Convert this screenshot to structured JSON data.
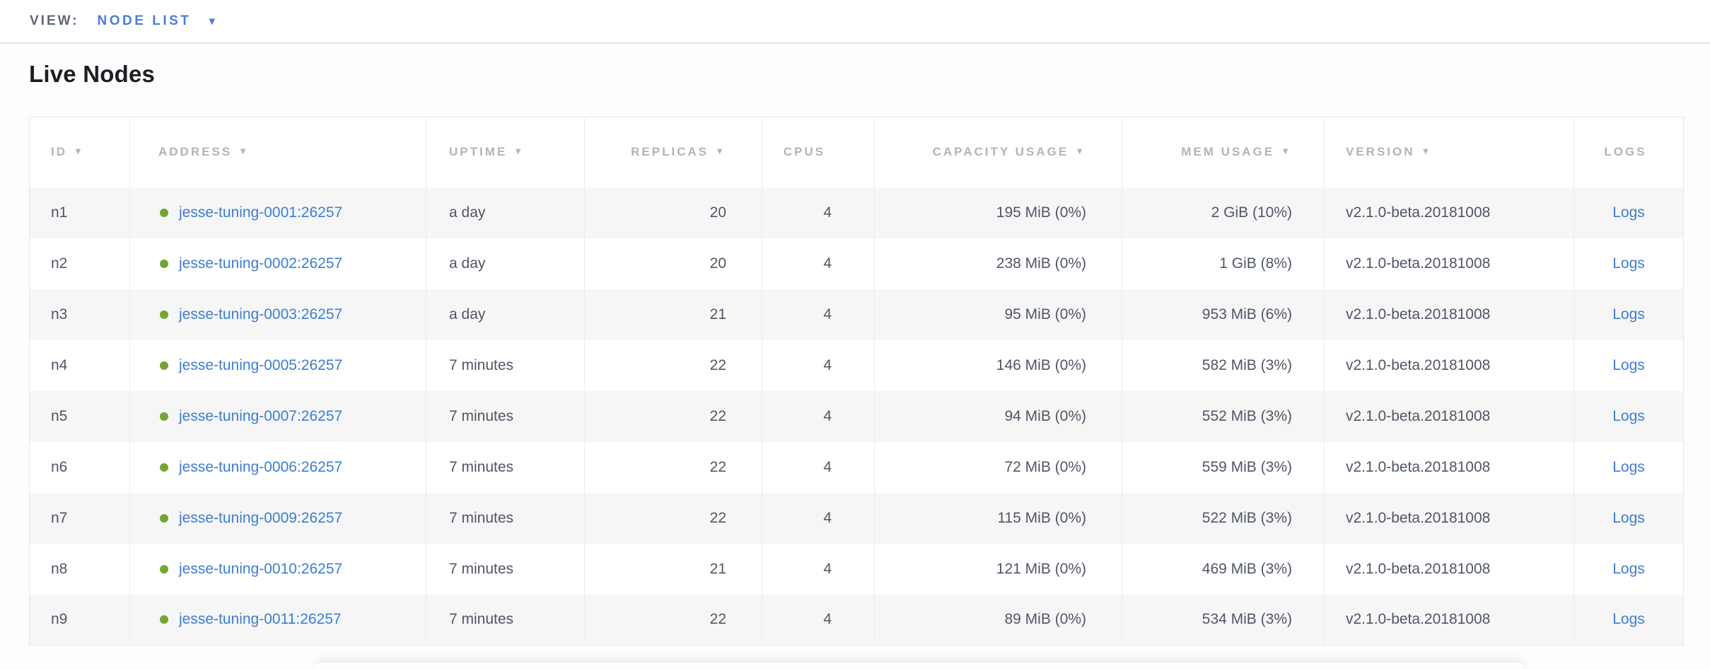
{
  "view_bar": {
    "label": "VIEW:",
    "selected": "NODE LIST",
    "caret_icon": "▼"
  },
  "page": {
    "title": "Live Nodes"
  },
  "table": {
    "columns": [
      {
        "label": "ID",
        "sort_icon": "▼",
        "align": "left"
      },
      {
        "label": "ADDRESS",
        "sort_icon": "▼",
        "align": "left"
      },
      {
        "label": "UPTIME",
        "sort_icon": "▼",
        "align": "left"
      },
      {
        "label": "REPLICAS",
        "sort_icon": "▼",
        "align": "right"
      },
      {
        "label": "CPUS",
        "sort_icon": "",
        "align": "right"
      },
      {
        "label": "CAPACITY USAGE",
        "sort_icon": "▼",
        "align": "right"
      },
      {
        "label": "MEM USAGE",
        "sort_icon": "▼",
        "align": "right"
      },
      {
        "label": "VERSION",
        "sort_icon": "▼",
        "align": "left"
      },
      {
        "label": "LOGS",
        "sort_icon": "",
        "align": "center"
      }
    ],
    "rows": [
      {
        "id": "n1",
        "status": "live",
        "address": "jesse-tuning-0001:26257",
        "uptime": "a day",
        "replicas": "20",
        "cpus": "4",
        "capacity_usage": "195 MiB (0%)",
        "mem_usage": "2 GiB (10%)",
        "version": "v2.1.0-beta.20181008",
        "logs_label": "Logs"
      },
      {
        "id": "n2",
        "status": "live",
        "address": "jesse-tuning-0002:26257",
        "uptime": "a day",
        "replicas": "20",
        "cpus": "4",
        "capacity_usage": "238 MiB (0%)",
        "mem_usage": "1 GiB (8%)",
        "version": "v2.1.0-beta.20181008",
        "logs_label": "Logs"
      },
      {
        "id": "n3",
        "status": "live",
        "address": "jesse-tuning-0003:26257",
        "uptime": "a day",
        "replicas": "21",
        "cpus": "4",
        "capacity_usage": "95 MiB (0%)",
        "mem_usage": "953 MiB (6%)",
        "version": "v2.1.0-beta.20181008",
        "logs_label": "Logs"
      },
      {
        "id": "n4",
        "status": "live",
        "address": "jesse-tuning-0005:26257",
        "uptime": "7 minutes",
        "replicas": "22",
        "cpus": "4",
        "capacity_usage": "146 MiB (0%)",
        "mem_usage": "582 MiB (3%)",
        "version": "v2.1.0-beta.20181008",
        "logs_label": "Logs"
      },
      {
        "id": "n5",
        "status": "live",
        "address": "jesse-tuning-0007:26257",
        "uptime": "7 minutes",
        "replicas": "22",
        "cpus": "4",
        "capacity_usage": "94 MiB (0%)",
        "mem_usage": "552 MiB (3%)",
        "version": "v2.1.0-beta.20181008",
        "logs_label": "Logs"
      },
      {
        "id": "n6",
        "status": "live",
        "address": "jesse-tuning-0006:26257",
        "uptime": "7 minutes",
        "replicas": "22",
        "cpus": "4",
        "capacity_usage": "72 MiB (0%)",
        "mem_usage": "559 MiB (3%)",
        "version": "v2.1.0-beta.20181008",
        "logs_label": "Logs"
      },
      {
        "id": "n7",
        "status": "live",
        "address": "jesse-tuning-0009:26257",
        "uptime": "7 minutes",
        "replicas": "22",
        "cpus": "4",
        "capacity_usage": "115 MiB (0%)",
        "mem_usage": "522 MiB (3%)",
        "version": "v2.1.0-beta.20181008",
        "logs_label": "Logs"
      },
      {
        "id": "n8",
        "status": "live",
        "address": "jesse-tuning-0010:26257",
        "uptime": "7 minutes",
        "replicas": "21",
        "cpus": "4",
        "capacity_usage": "121 MiB (0%)",
        "mem_usage": "469 MiB (3%)",
        "version": "v2.1.0-beta.20181008",
        "logs_label": "Logs"
      },
      {
        "id": "n9",
        "status": "live",
        "address": "jesse-tuning-0011:26257",
        "uptime": "7 minutes",
        "replicas": "22",
        "cpus": "4",
        "capacity_usage": "89 MiB (0%)",
        "mem_usage": "534 MiB (3%)",
        "version": "v2.1.0-beta.20181008",
        "logs_label": "Logs"
      }
    ]
  },
  "colors": {
    "link_blue": "#3b7dd8",
    "view_blue": "#4a7de2",
    "status_green": "#72a533",
    "header_gray": "#b4b4b4",
    "cell_text": "#4f5666",
    "odd_row_bg": "#f6f6f6",
    "title_text": "#1c1e24"
  }
}
